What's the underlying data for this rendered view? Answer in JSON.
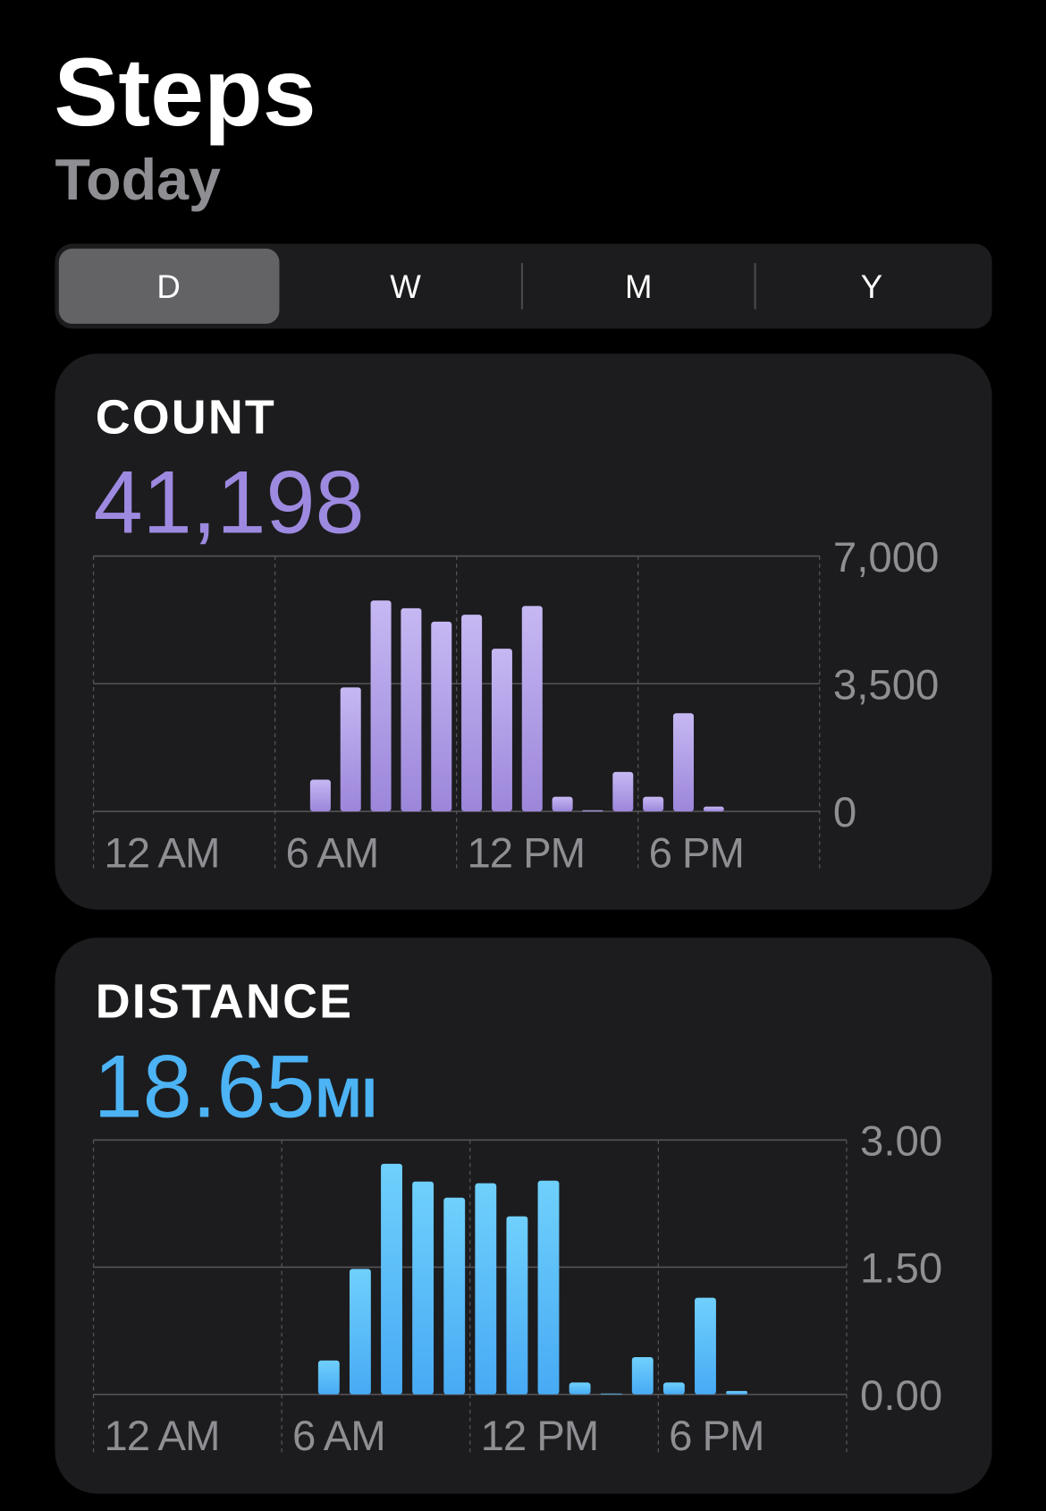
{
  "header": {
    "title": "Steps",
    "subtitle": "Today"
  },
  "segments": {
    "items": [
      "D",
      "W",
      "M",
      "Y"
    ],
    "selected": 0
  },
  "cards": [
    {
      "label": "COUNT",
      "total": "41,198",
      "color": "#9d8ae0",
      "chart": {
        "type": "bar",
        "categories": [
          "12 AM",
          null,
          null,
          null,
          null,
          null,
          "6 AM",
          null,
          null,
          null,
          null,
          null,
          "12 PM",
          null,
          null,
          null,
          null,
          null,
          "6 PM",
          null,
          null,
          null,
          null,
          null
        ],
        "values": [
          0,
          0,
          0,
          0,
          0,
          0,
          0,
          870,
          3400,
          5780,
          5570,
          5200,
          5390,
          4460,
          5630,
          400,
          30,
          1080,
          400,
          2690,
          130,
          0,
          0,
          0
        ],
        "colors": [
          "#c6b8f3",
          "#9c86da"
        ],
        "ylim": [
          0,
          7000
        ],
        "yticks": [
          {
            "value": 7000,
            "label": "7,000"
          },
          {
            "value": 3500,
            "label": "3,500"
          },
          0
        ],
        "grid": true
      }
    },
    {
      "label": "DISTANCE",
      "total": "18.65",
      "unit": "MI",
      "color": "#4cb3f5",
      "chart": {
        "type": "bar",
        "categories": [
          "12 AM",
          null,
          null,
          null,
          null,
          null,
          "6 AM",
          null,
          null,
          null,
          null,
          null,
          "12 PM",
          null,
          null,
          null,
          null,
          null,
          "6 PM",
          null,
          null,
          null,
          null,
          null
        ],
        "values": [
          0,
          0,
          0,
          0,
          0,
          0,
          0,
          0.4,
          1.48,
          2.72,
          2.51,
          2.32,
          2.49,
          2.1,
          2.52,
          0.14,
          0.01,
          0.44,
          0.14,
          1.14,
          0.04,
          0,
          0,
          0
        ],
        "colors": [
          "#6fd0fc",
          "#48aaf4"
        ],
        "ylim": [
          0,
          3
        ],
        "yticks": [
          {
            "value": 3,
            "label": "3.00"
          },
          {
            "value": 1.5,
            "label": "1.50"
          },
          {
            "value": 0,
            "label": "0.00"
          }
        ],
        "grid": true
      }
    }
  ]
}
